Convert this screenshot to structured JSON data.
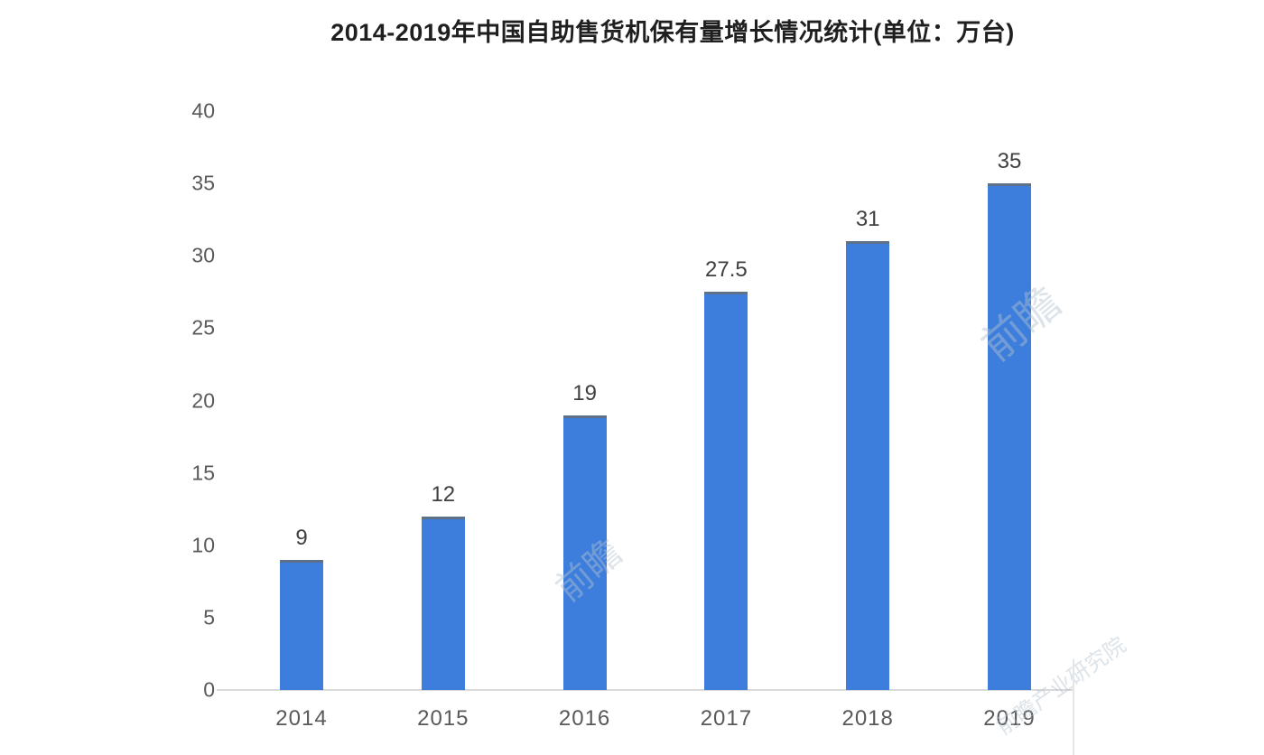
{
  "chart_data": {
    "type": "bar",
    "title": "2014-2019年中国自助售货机保有量增长情况统计(单位：万台)",
    "categories": [
      "2014",
      "2015",
      "2016",
      "2017",
      "2018",
      "2019"
    ],
    "values": [
      9,
      12,
      19,
      27.5,
      31,
      35
    ],
    "data_labels": [
      "9",
      "12",
      "19",
      "27.5",
      "31",
      "35"
    ],
    "y_ticks": [
      0,
      5,
      10,
      15,
      20,
      25,
      30,
      35,
      40
    ],
    "ylim": [
      0,
      40
    ],
    "xlabel": "",
    "ylabel": "",
    "grid": "off",
    "legend": "none",
    "colors": {
      "bar": "#3d7edd",
      "bar_cap": "#5f7187",
      "axis_line": "#d9d9d9",
      "value_label": "#3f3f3f",
      "tick_label": "#595959",
      "title": "#1f1f1f",
      "background": "#ffffff"
    }
  },
  "watermarks": [
    {
      "text": "前瞻",
      "rotate": -40,
      "size": 48
    },
    {
      "text": "前瞻",
      "rotate": -40,
      "size": 40
    },
    {
      "text": "前瞻产业研究院",
      "rotate": -35,
      "size": 24
    }
  ]
}
